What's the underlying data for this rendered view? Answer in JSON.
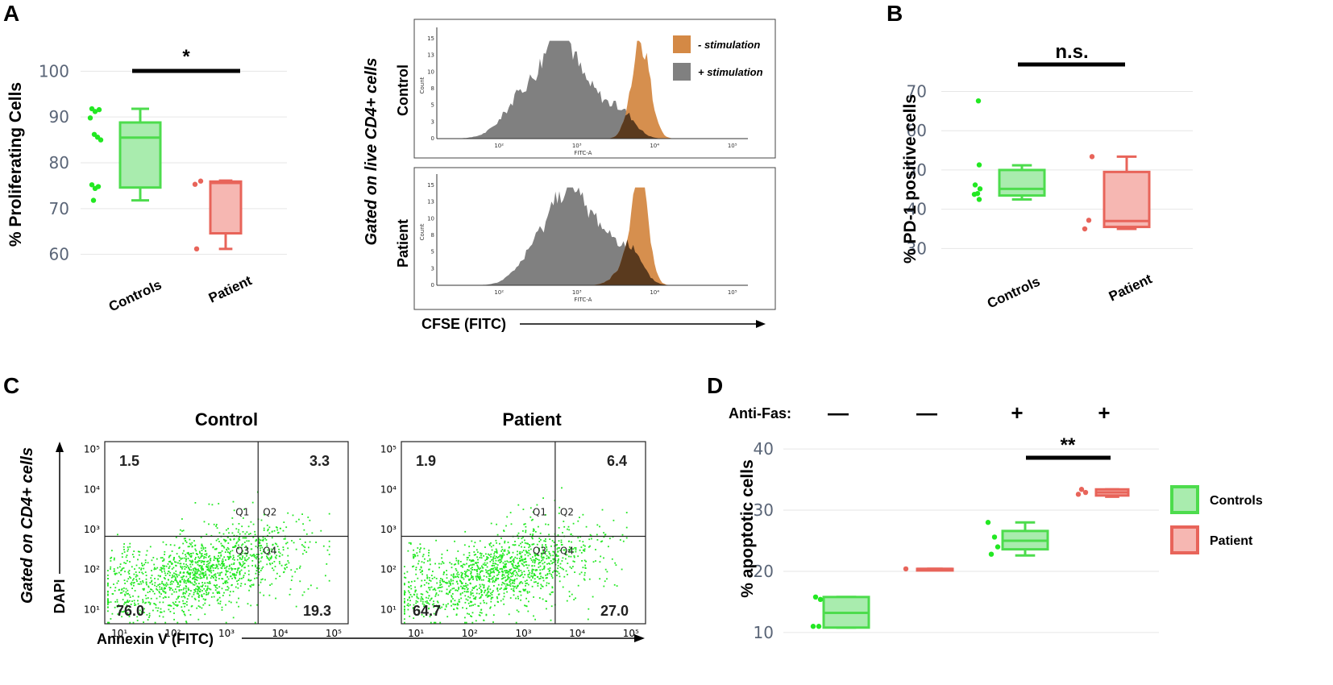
{
  "colors": {
    "control_stroke": "#4ddc4d",
    "control_fill": "#a9ecae",
    "patient_stroke": "#e8645a",
    "patient_fill": "#f6b7b2",
    "minus_stim": "#d48945",
    "plus_stim": "#808080",
    "overlap": "#5a3a1e",
    "dot_green": "#22e822"
  },
  "chart_data": [
    {
      "panel": "A",
      "type": "box",
      "ylabel": "% Proliferating Cells",
      "ylim": [
        58,
        102
      ],
      "yticks": [
        60,
        70,
        80,
        90,
        100
      ],
      "categories": [
        "Controls",
        "Patient"
      ],
      "series": [
        {
          "name": "Controls",
          "min": 71.8,
          "q1": 74.6,
          "median": 85.5,
          "q3": 88.8,
          "max": 91.8,
          "points": [
            91.8,
            91.2,
            91.6,
            89.8,
            86.2,
            85.6,
            85.0,
            75.2,
            74.4,
            74.8,
            71.8
          ]
        },
        {
          "name": "Patient",
          "min": 61.2,
          "q1": 64.6,
          "median": 75.6,
          "q3": 75.9,
          "max": 76.1,
          "points": [
            75.3,
            76.0,
            61.2
          ]
        }
      ],
      "annotation": "*"
    },
    {
      "panel": "A-histogram",
      "type": "area",
      "xlabel": "CFSE (FITC)",
      "ylabel": "Count",
      "axis_label": "FITC-A",
      "side_label": "Gated on live CD4+ cells",
      "rows": [
        "Control",
        "Patient"
      ],
      "legend": [
        "- stimulation",
        "+ stimulation"
      ],
      "xticks": [
        "10²",
        "10³",
        "10⁴",
        "10⁵"
      ],
      "yticks": [
        "0",
        "3",
        "5",
        "8",
        "10",
        "13",
        "15"
      ]
    },
    {
      "panel": "B",
      "type": "box",
      "ylabel": "% PD-1 positive cells",
      "ylim": [
        27,
        74
      ],
      "yticks": [
        30,
        40,
        50,
        60,
        70
      ],
      "categories": [
        "Controls",
        "Patient"
      ],
      "series": [
        {
          "name": "Controls",
          "min": 42.5,
          "q1": 43.5,
          "median": 45.2,
          "q3": 50.0,
          "max": 51.2,
          "points": [
            67.6,
            51.3,
            46.2,
            45.2,
            44.0,
            43.8,
            42.5
          ]
        },
        {
          "name": "Patient",
          "min": 35.0,
          "q1": 35.5,
          "median": 37.0,
          "q3": 49.5,
          "max": 53.4,
          "points": [
            53.4,
            37.2,
            35.0
          ]
        }
      ],
      "annotation": "n.s."
    },
    {
      "panel": "C",
      "type": "scatter",
      "xlabel": "Annexin V (FITC)",
      "ylabel": "DAPI",
      "side_label": "Gated on CD4+ cells",
      "ticks": [
        "10¹",
        "10²",
        "10³",
        "10⁴",
        "10⁵"
      ],
      "quadrant_labels": [
        "Q1",
        "Q2",
        "Q3",
        "Q4"
      ],
      "plots": [
        {
          "title": "Control",
          "q1": "1.5",
          "q2": "3.3",
          "q3": "76.0",
          "q4": "19.3"
        },
        {
          "title": "Patient",
          "q1": "1.9",
          "q2": "6.4",
          "q3": "64.7",
          "q4": "27.0"
        }
      ]
    },
    {
      "panel": "D",
      "type": "box",
      "ylabel": "% apoptotic cells",
      "row_label": "Anti-Fas:",
      "ylim": [
        8,
        42
      ],
      "yticks": [
        10,
        20,
        30,
        40
      ],
      "groups": [
        {
          "anti_fas": "—",
          "series": "Controls",
          "min": 10.8,
          "q1": 10.8,
          "median": 13.2,
          "q3": 15.8,
          "max": 15.8,
          "points": [
            15.8,
            15.4,
            11.0,
            11.0
          ]
        },
        {
          "anti_fas": "—",
          "series": "Patient",
          "min": 20.4,
          "q1": 20.4,
          "median": 20.4,
          "q3": 20.4,
          "max": 20.4,
          "points": [
            20.4
          ]
        },
        {
          "anti_fas": "+",
          "series": "Controls",
          "min": 22.6,
          "q1": 23.6,
          "median": 25.0,
          "q3": 26.6,
          "max": 28.0,
          "points": [
            28.0,
            25.6,
            24.0,
            22.8
          ]
        },
        {
          "anti_fas": "+",
          "series": "Patient",
          "min": 32.2,
          "q1": 32.4,
          "median": 32.9,
          "q3": 33.4,
          "max": 33.4,
          "points": [
            33.4,
            32.9,
            32.6
          ]
        }
      ],
      "legend": [
        "Controls",
        "Patient"
      ],
      "annotation": "**"
    }
  ],
  "panels": {
    "a": "A",
    "b": "B",
    "c": "C",
    "d": "D"
  }
}
